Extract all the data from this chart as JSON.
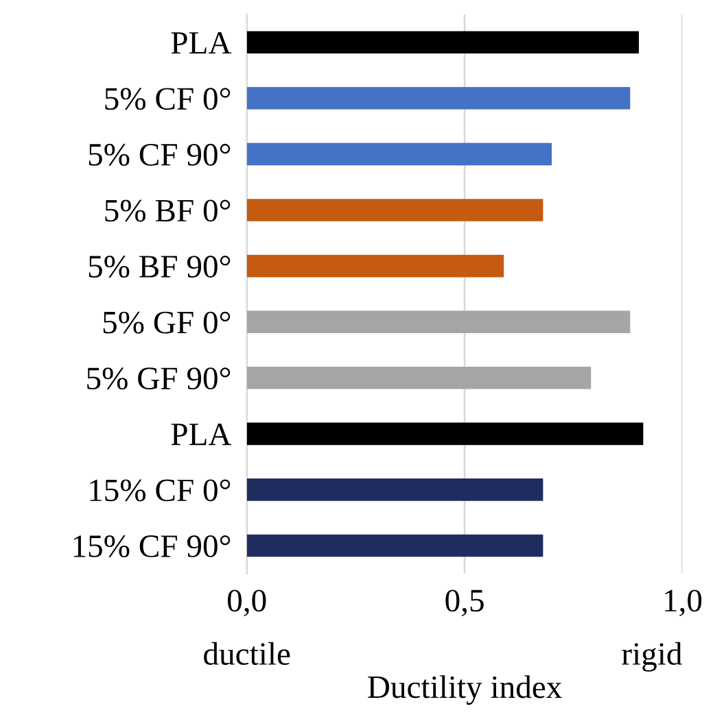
{
  "chart_data": {
    "type": "bar",
    "orientation": "horizontal",
    "xlabel": "Ductility index",
    "categories": [
      "PLA",
      "5% CF 0°",
      "5% CF 90°",
      "5% BF 0°",
      "5% BF 90°",
      "5% GF 0°",
      "5% GF 90°",
      "PLA",
      "15% CF 0°",
      "15% CF 90°"
    ],
    "values": [
      0.9,
      0.88,
      0.7,
      0.68,
      0.59,
      0.88,
      0.79,
      0.91,
      0.68,
      0.68
    ],
    "colors": [
      "#000000",
      "#4472c4",
      "#4472c4",
      "#c55a11",
      "#c55a11",
      "#a5a5a5",
      "#a5a5a5",
      "#000000",
      "#1f2d5e",
      "#1f2d5e"
    ],
    "xlim": [
      0,
      1.0
    ],
    "xticks": [
      {
        "value": 0,
        "label": "0,0"
      },
      {
        "value": 0.5,
        "label": "0,5"
      },
      {
        "value": 1.0,
        "label": "1,0"
      }
    ],
    "grid": "x",
    "annotations": [
      "ductile",
      "rigid"
    ]
  }
}
